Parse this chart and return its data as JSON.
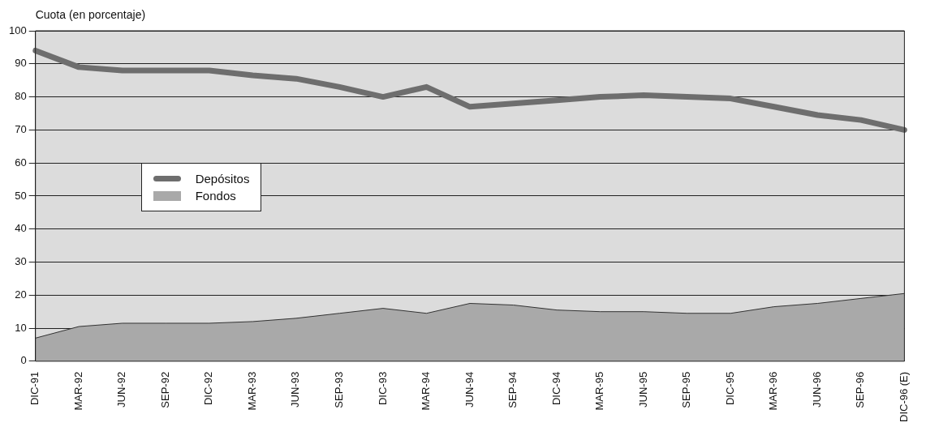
{
  "chart_data": {
    "type": "line",
    "ylabel": "Cuota (en porcentaje)",
    "categories": [
      "DIC-91",
      "MAR-92",
      "JUN-92",
      "SEP-92",
      "DIC-92",
      "MAR-93",
      "JUN-93",
      "SEP-93",
      "DIC-93",
      "MAR-94",
      "JUN-94",
      "SEP-94",
      "DIC-94",
      "MAR-95",
      "JUN-95",
      "SEP-95",
      "DIC-95",
      "MAR-96",
      "JUN-96",
      "SEP-96",
      "DIC-96 (E)"
    ],
    "series": [
      {
        "name": "Depósitos",
        "color": "#6e6e6e",
        "values": [
          94,
          89,
          88,
          88,
          88,
          86.5,
          85.5,
          83,
          80,
          83,
          77,
          78,
          79,
          80,
          80.5,
          80,
          79.5,
          77,
          74.5,
          73,
          70
        ]
      },
      {
        "name": "Fondos",
        "type": "area",
        "color": "#a9a9a9",
        "values": [
          7,
          10.5,
          11.5,
          11.5,
          11.5,
          12,
          13,
          14.5,
          16,
          14.5,
          17.5,
          17,
          15.5,
          15,
          15,
          14.5,
          14.5,
          16.5,
          17.5,
          19,
          20.5
        ]
      }
    ],
    "ylim": [
      0,
      100
    ],
    "yticks": [
      0,
      10,
      20,
      30,
      40,
      50,
      60,
      70,
      80,
      90,
      100
    ],
    "grid": "y",
    "legend": "left",
    "marker": "none"
  }
}
